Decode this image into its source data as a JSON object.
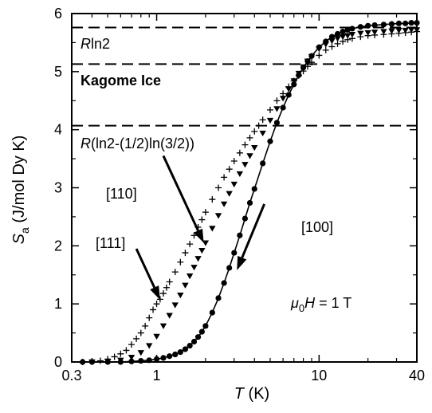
{
  "chart_data": {
    "type": "scatter",
    "x_scale": "log",
    "xlim": [
      0.3,
      40
    ],
    "ylim": [
      0,
      6
    ],
    "x_ticks": [
      {
        "value": 0.3,
        "label": "0.3"
      },
      {
        "value": 1,
        "label": "1"
      },
      {
        "value": 10,
        "label": "10"
      },
      {
        "value": 40,
        "label": "40"
      }
    ],
    "y_ticks": [
      {
        "value": 0,
        "label": "0"
      },
      {
        "value": 1,
        "label": "1"
      },
      {
        "value": 2,
        "label": "2"
      },
      {
        "value": 3,
        "label": "3"
      },
      {
        "value": 4,
        "label": "4"
      },
      {
        "value": 5,
        "label": "5"
      },
      {
        "value": 6,
        "label": "6"
      }
    ],
    "xlabel": {
      "symbol": "T",
      "unit": " (K)"
    },
    "ylabel": {
      "symbol": "S",
      "sub": "a",
      "unit": " (J/mol Dy K)"
    },
    "grid": false,
    "reference_lines": [
      {
        "value": 5.76,
        "label_italic": "R",
        "label_rest": "ln2",
        "bold": false
      },
      {
        "value": 5.13,
        "label_italic": "",
        "label_rest": "Kagome Ice",
        "bold": true
      },
      {
        "value": 4.07,
        "label_italic": "R",
        "label_rest": "(ln2-(1/2)ln(3/2))",
        "bold": false
      }
    ],
    "annotations": {
      "field": {
        "mu": "μ",
        "sub": "0",
        "H": "H",
        "rest": " = 1 T"
      }
    },
    "series": [
      {
        "label": "[111]",
        "marker": "plus",
        "x": [
          0.35,
          0.4,
          0.45,
          0.5,
          0.55,
          0.6,
          0.65,
          0.7,
          0.75,
          0.8,
          0.85,
          0.9,
          0.95,
          1.0,
          1.05,
          1.1,
          1.15,
          1.2,
          1.3,
          1.4,
          1.5,
          1.6,
          1.7,
          1.8,
          1.9,
          2.0,
          2.2,
          2.4,
          2.6,
          2.8,
          3.0,
          3.25,
          3.5,
          3.75,
          4.0,
          4.25,
          4.5,
          5.0,
          5.5,
          6.0,
          6.5,
          7.0,
          7.5,
          8.0,
          8.5,
          9.0,
          10,
          11,
          12,
          13,
          14,
          15,
          16,
          18,
          20,
          22,
          25,
          28,
          31,
          34,
          37,
          40
        ],
        "y": [
          0.0,
          0.01,
          0.02,
          0.05,
          0.09,
          0.14,
          0.2,
          0.3,
          0.4,
          0.5,
          0.62,
          0.76,
          0.9,
          1.0,
          1.08,
          1.18,
          1.28,
          1.38,
          1.55,
          1.72,
          1.88,
          2.03,
          2.18,
          2.32,
          2.45,
          2.58,
          2.8,
          3.0,
          3.18,
          3.32,
          3.46,
          3.6,
          3.74,
          3.86,
          3.97,
          4.07,
          4.17,
          4.34,
          4.5,
          4.62,
          4.74,
          4.84,
          4.93,
          5.01,
          5.09,
          5.16,
          5.28,
          5.37,
          5.43,
          5.48,
          5.52,
          5.55,
          5.57,
          5.6,
          5.62,
          5.63,
          5.64,
          5.65,
          5.66,
          5.67,
          5.68,
          5.69
        ]
      },
      {
        "label": "[110]",
        "marker": "triangle-down",
        "x": [
          0.4,
          0.5,
          0.6,
          0.7,
          0.8,
          0.9,
          1.0,
          1.1,
          1.2,
          1.3,
          1.4,
          1.5,
          1.6,
          1.7,
          1.8,
          1.9,
          2.0,
          2.2,
          2.4,
          2.6,
          2.8,
          3.0,
          3.25,
          3.5,
          3.75,
          4.0,
          4.5,
          5.0,
          5.5,
          6.0,
          6.5,
          7.0,
          7.5,
          8.0,
          8.5,
          9.0,
          10,
          11,
          12,
          13,
          14,
          15,
          16,
          18,
          20,
          22,
          25,
          28,
          31,
          34,
          37,
          40
        ],
        "y": [
          0.0,
          0.01,
          0.03,
          0.08,
          0.16,
          0.28,
          0.44,
          0.62,
          0.8,
          0.98,
          1.15,
          1.32,
          1.48,
          1.63,
          1.78,
          1.92,
          2.05,
          2.3,
          2.52,
          2.72,
          2.9,
          3.06,
          3.24,
          3.4,
          3.55,
          3.69,
          3.94,
          4.16,
          4.36,
          4.54,
          4.7,
          4.84,
          4.97,
          5.08,
          5.18,
          5.26,
          5.39,
          5.47,
          5.53,
          5.57,
          5.6,
          5.62,
          5.64,
          5.66,
          5.67,
          5.68,
          5.69,
          5.7,
          5.71,
          5.71,
          5.72,
          5.72
        ]
      },
      {
        "label": "[100]",
        "marker": "circle",
        "x": [
          0.35,
          0.4,
          0.5,
          0.6,
          0.7,
          0.8,
          0.9,
          1.0,
          1.1,
          1.2,
          1.3,
          1.4,
          1.5,
          1.6,
          1.7,
          1.8,
          1.9,
          2.0,
          2.2,
          2.4,
          2.6,
          2.8,
          3.0,
          3.25,
          3.5,
          3.75,
          4.0,
          4.5,
          5.0,
          5.5,
          6.0,
          6.5,
          7.0,
          7.5,
          8.0,
          8.5,
          9.0,
          10,
          11,
          12,
          13,
          14,
          15,
          16,
          18,
          20,
          22,
          25,
          28,
          31,
          34,
          37,
          40
        ],
        "y": [
          0.0,
          0.0,
          0.0,
          0.0,
          0.01,
          0.02,
          0.03,
          0.05,
          0.07,
          0.1,
          0.13,
          0.17,
          0.22,
          0.28,
          0.35,
          0.43,
          0.52,
          0.62,
          0.85,
          1.1,
          1.36,
          1.62,
          1.88,
          2.18,
          2.47,
          2.74,
          2.98,
          3.42,
          3.8,
          4.12,
          4.38,
          4.6,
          4.78,
          4.94,
          5.07,
          5.18,
          5.27,
          5.42,
          5.52,
          5.6,
          5.65,
          5.69,
          5.72,
          5.74,
          5.77,
          5.79,
          5.8,
          5.81,
          5.82,
          5.83,
          5.83,
          5.84,
          5.84
        ]
      }
    ],
    "callouts": [
      {
        "text": "[110]",
        "tail": [
          1.1,
          3.55
        ],
        "head": [
          1.95,
          2.05
        ]
      },
      {
        "text": "[111]",
        "tail": [
          0.75,
          1.95
        ],
        "head": [
          1.05,
          1.07
        ]
      },
      {
        "text": "[100]",
        "tail": [
          4.6,
          2.72
        ],
        "head": [
          3.12,
          1.58
        ]
      }
    ]
  }
}
